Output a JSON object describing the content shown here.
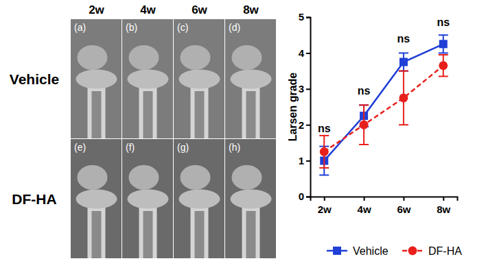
{
  "image_panel": {
    "columns": [
      "2w",
      "4w",
      "6w",
      "8w"
    ],
    "rows": [
      "Vehicle",
      "DF-HA"
    ],
    "panel_labels": [
      "(a)",
      "(b)",
      "(c)",
      "(d)",
      "(e)",
      "(f)",
      "(g)",
      "(h)"
    ]
  },
  "chart_data": {
    "type": "line",
    "y_label": "Larsen grade",
    "categories": [
      "2w",
      "4w",
      "6w",
      "8w"
    ],
    "series": [
      {
        "name": "Vehicle",
        "color": "#1f3fd6",
        "marker": "square",
        "line_style": "solid",
        "values": [
          1.0,
          2.25,
          3.75,
          4.25
        ],
        "errors": [
          0.4,
          0.3,
          0.25,
          0.25
        ]
      },
      {
        "name": "DF-HA",
        "color": "#e8201c",
        "marker": "circle",
        "line_style": "dashed",
        "values": [
          1.25,
          2.0,
          2.75,
          3.65
        ],
        "errors": [
          0.45,
          0.55,
          0.75,
          0.3
        ]
      }
    ],
    "annotations": [
      {
        "text": "ns",
        "x": "2w",
        "y": 1.8
      },
      {
        "text": "ns",
        "x": "4w",
        "y": 2.85
      },
      {
        "text": "ns",
        "x": "6w",
        "y": 4.3
      },
      {
        "text": "ns",
        "x": "8w",
        "y": 4.75
      }
    ],
    "ylim": [
      0,
      5
    ],
    "yticks": [
      0,
      1,
      2,
      3,
      4,
      5
    ],
    "legend": "bottom"
  }
}
